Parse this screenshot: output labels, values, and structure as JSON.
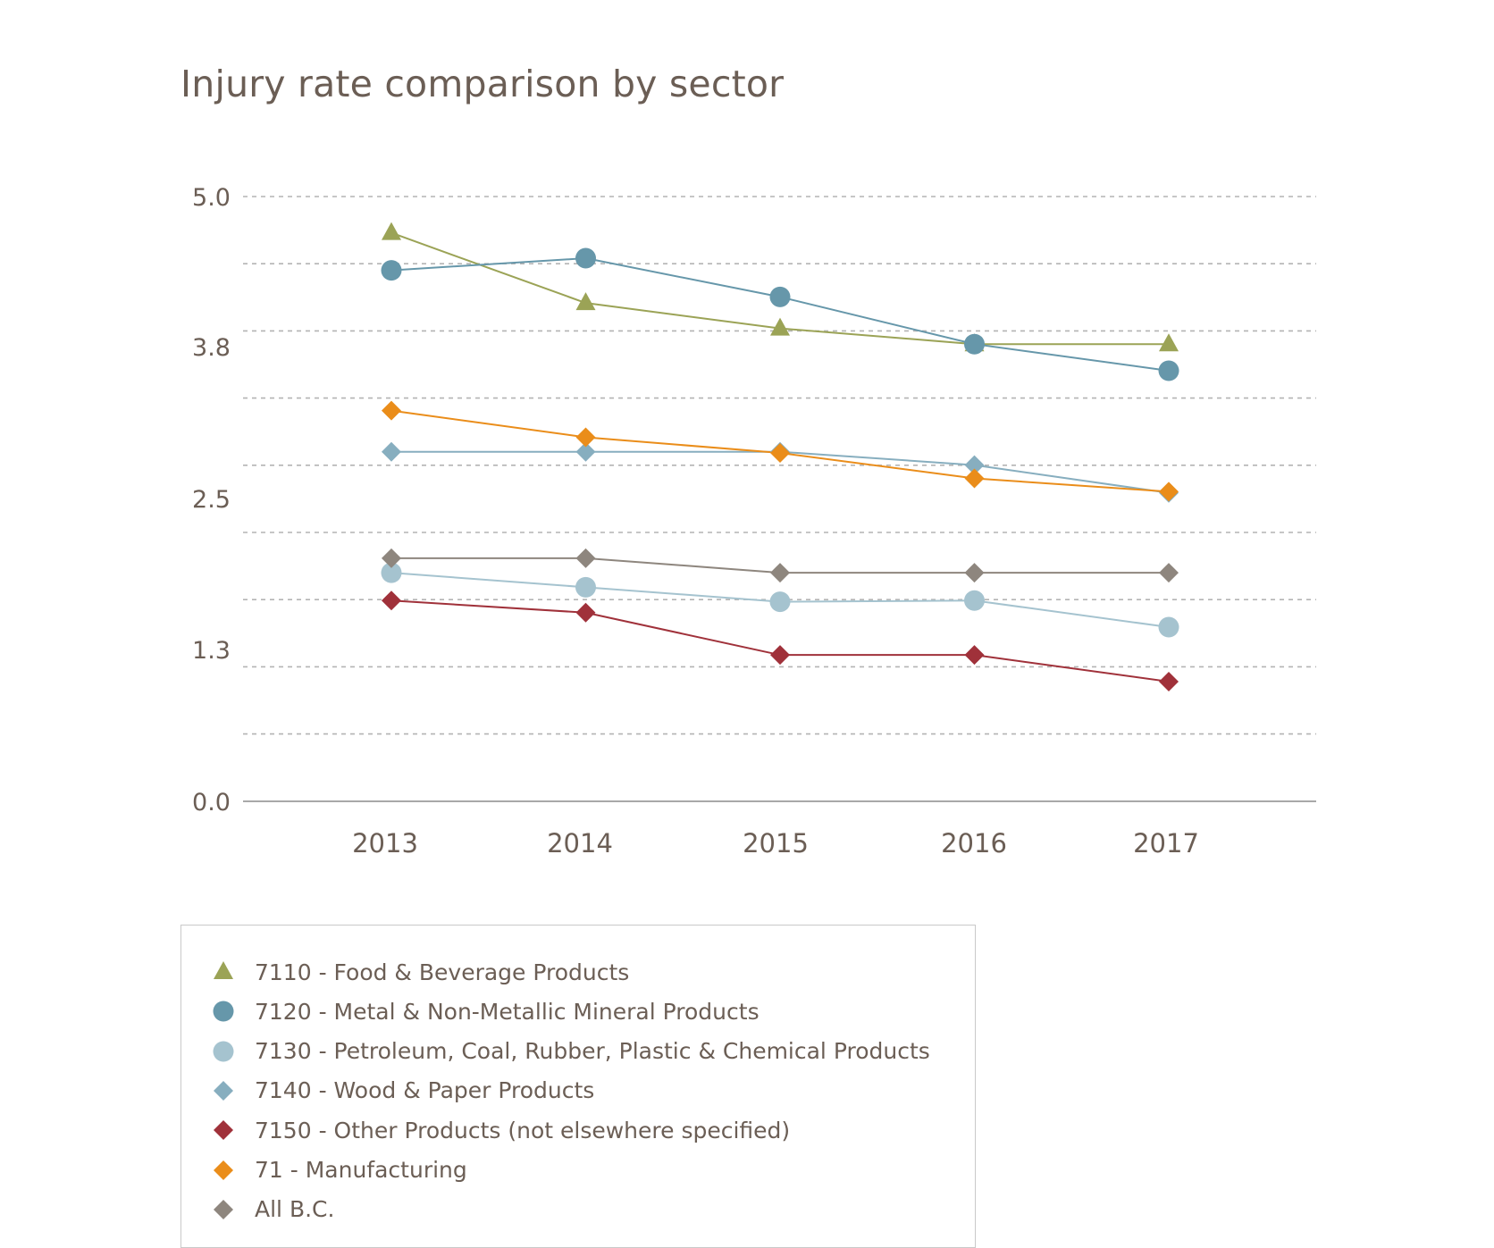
{
  "chart_data": {
    "type": "line",
    "title": "Injury rate comparison by sector",
    "xlabel": "",
    "ylabel": "",
    "x": [
      "2013",
      "2014",
      "2015",
      "2016",
      "2017"
    ],
    "yticks": [
      "5.0",
      "3.8",
      "2.5",
      "1.3",
      "0.0"
    ],
    "ylim": [
      0,
      5
    ],
    "grid": true,
    "legend_position": "bottom-left",
    "series": [
      {
        "name": "7110 - Food & Beverage Products",
        "marker": "triangle",
        "color": "#9ba356",
        "values": [
          4.7,
          4.12,
          3.91,
          3.78,
          3.78
        ]
      },
      {
        "name": "7120 - Metal & Non-Metallic Mineral Products",
        "marker": "circle",
        "color": "#6697aa",
        "values": [
          4.39,
          4.49,
          4.17,
          3.78,
          3.56
        ]
      },
      {
        "name": "7130 - Petroleum, Coal, Rubber, Plastic & Chemical Products",
        "marker": "circle-light",
        "color": "#a5c3cf",
        "values": [
          1.89,
          1.77,
          1.65,
          1.66,
          1.44
        ]
      },
      {
        "name": "7140 - Wood & Paper Products",
        "marker": "diamond",
        "color": "#87aebf",
        "values": [
          2.89,
          2.89,
          2.89,
          2.78,
          2.55
        ]
      },
      {
        "name": "7150 - Other Products (not elsewhere specified)",
        "marker": "diamond",
        "color": "#a0313a",
        "values": [
          1.66,
          1.56,
          1.21,
          1.21,
          0.99
        ]
      },
      {
        "name": "71 - Manufacturing",
        "marker": "diamond",
        "color": "#ea8d1a",
        "values": [
          3.23,
          3.01,
          2.88,
          2.67,
          2.56
        ]
      },
      {
        "name": "All B.C.",
        "marker": "diamond",
        "color": "#8e867e",
        "values": [
          2.01,
          2.01,
          1.89,
          1.89,
          1.89
        ]
      }
    ]
  }
}
